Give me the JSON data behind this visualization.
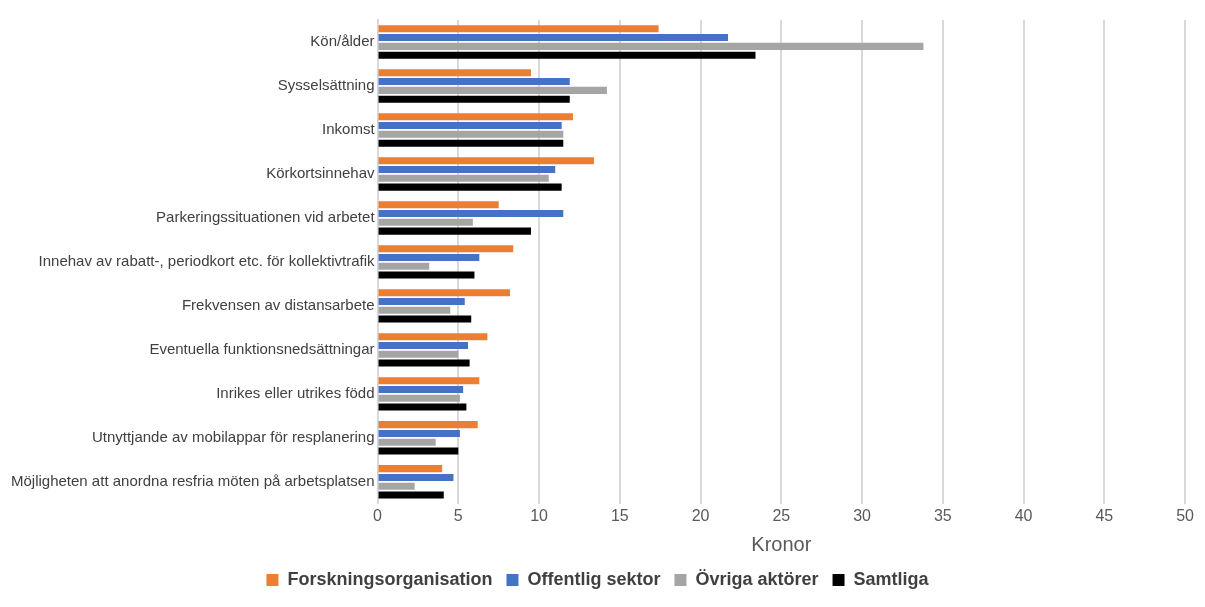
{
  "chart_data": {
    "type": "bar",
    "orientation": "horizontal",
    "xlabel": "Kronor",
    "categories": [
      "Kön/ålder",
      "Sysselsättning",
      "Inkomst",
      "Körkortsinnehav",
      "Parkeringssituationen vid arbetet",
      "Innehav av rabatt-, periodkort etc. för kollektivtrafik",
      "Frekvensen av distansarbete",
      "Eventuella funktionsnedsättningar",
      "Inrikes eller utrikes född",
      "Utnyttjande av mobilappar för resplanering",
      "Möjligheten att anordna resfria möten på arbetsplatsen"
    ],
    "series": [
      {
        "name": "Forskningsorganisation",
        "color": "#ed7d31",
        "values": [
          17.4,
          9.5,
          12.1,
          13.4,
          7.5,
          8.4,
          8.2,
          6.8,
          6.3,
          6.2,
          4.0
        ]
      },
      {
        "name": "Offentlig sektor",
        "color": "#4472c4",
        "values": [
          21.7,
          11.9,
          11.4,
          11.0,
          11.5,
          6.3,
          5.4,
          5.6,
          5.3,
          5.1,
          4.7
        ]
      },
      {
        "name": "Övriga aktörer",
        "color": "#a5a5a5",
        "values": [
          33.8,
          14.2,
          11.5,
          10.6,
          5.9,
          3.2,
          4.5,
          5.0,
          5.1,
          3.6,
          2.3
        ]
      },
      {
        "name": "Samtliga",
        "color": "#000000",
        "values": [
          23.4,
          11.9,
          11.5,
          11.4,
          9.5,
          6.0,
          5.8,
          5.7,
          5.5,
          5.0,
          4.1
        ]
      }
    ],
    "xlim": [
      0,
      50
    ],
    "xticks": [
      0,
      5,
      10,
      15,
      20,
      25,
      30,
      35,
      40,
      45,
      50
    ],
    "grid": "x",
    "legend": "bottom"
  }
}
